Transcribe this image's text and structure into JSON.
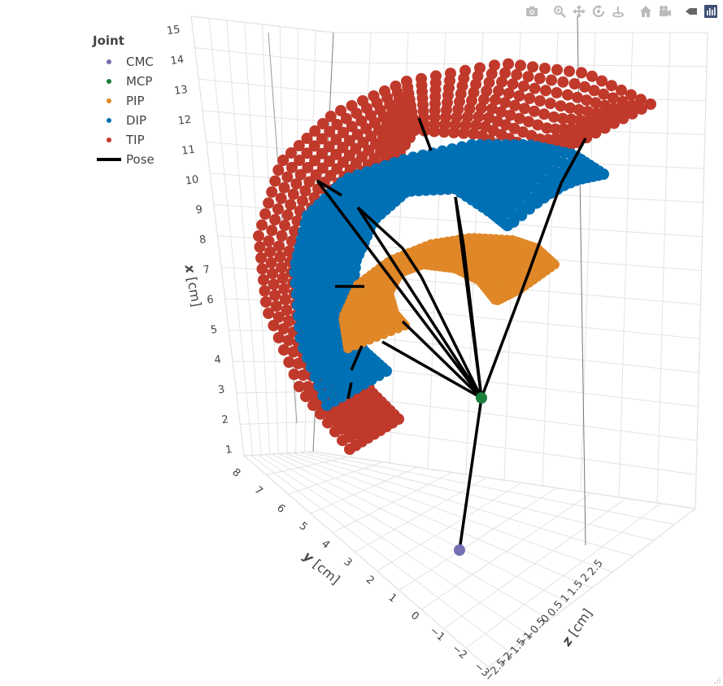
{
  "modebar": {
    "buttons": [
      {
        "name": "camera-icon"
      },
      {
        "name": "zoom-icon"
      },
      {
        "name": "pan-icon"
      },
      {
        "name": "orbit-rotation-icon"
      },
      {
        "name": "turntable-rotation-icon"
      },
      {
        "name": "home-icon"
      },
      {
        "name": "camera-view-icon"
      },
      {
        "name": "hover-toggle-icon"
      },
      {
        "name": "plotly-logo-icon"
      }
    ]
  },
  "legend": {
    "title": "Joint",
    "items": [
      {
        "label": "CMC",
        "color": "#7570b3",
        "kind": "marker"
      },
      {
        "label": "MCP",
        "color": "#1b7f3b",
        "kind": "marker"
      },
      {
        "label": "PIP",
        "color": "#e08728",
        "kind": "marker"
      },
      {
        "label": "DIP",
        "color": "#0070b4",
        "kind": "marker"
      },
      {
        "label": "TIP",
        "color": "#c0392b",
        "kind": "marker"
      },
      {
        "label": "Pose",
        "color": "#000000",
        "kind": "line"
      }
    ]
  },
  "chart_data": {
    "type": "scatter3d",
    "axes": {
      "x": {
        "title": "x",
        "unit": "[cm]",
        "ticks": [
          "1",
          "2",
          "3",
          "4",
          "5",
          "6",
          "7",
          "8",
          "9",
          "10",
          "11",
          "12",
          "13",
          "14",
          "15"
        ],
        "range": [
          1,
          15
        ]
      },
      "y": {
        "title": "y",
        "unit": "[cm]",
        "ticks": [
          "8",
          "7",
          "6",
          "5",
          "4",
          "3",
          "2",
          "1",
          "0",
          "−1",
          "−2",
          "−3"
        ],
        "range": [
          -3,
          8
        ]
      },
      "z": {
        "title": "z",
        "unit": "[cm]",
        "ticks": [
          "2.5",
          "2",
          "1.5",
          "1",
          "0.5",
          "0",
          "−0.5",
          "−1",
          "−1.5",
          "−2",
          "−2.5"
        ],
        "range": [
          -2.5,
          2.5
        ]
      }
    },
    "grid": true,
    "legend_position": "top-left",
    "series": [
      {
        "name": "CMC",
        "color": "#7570b3"
      },
      {
        "name": "MCP",
        "color": "#1b7f3b"
      },
      {
        "name": "PIP",
        "color": "#e08728"
      },
      {
        "name": "DIP",
        "color": "#0070b4"
      },
      {
        "name": "TIP",
        "color": "#c0392b"
      },
      {
        "name": "Pose",
        "color": "#000000"
      }
    ]
  }
}
